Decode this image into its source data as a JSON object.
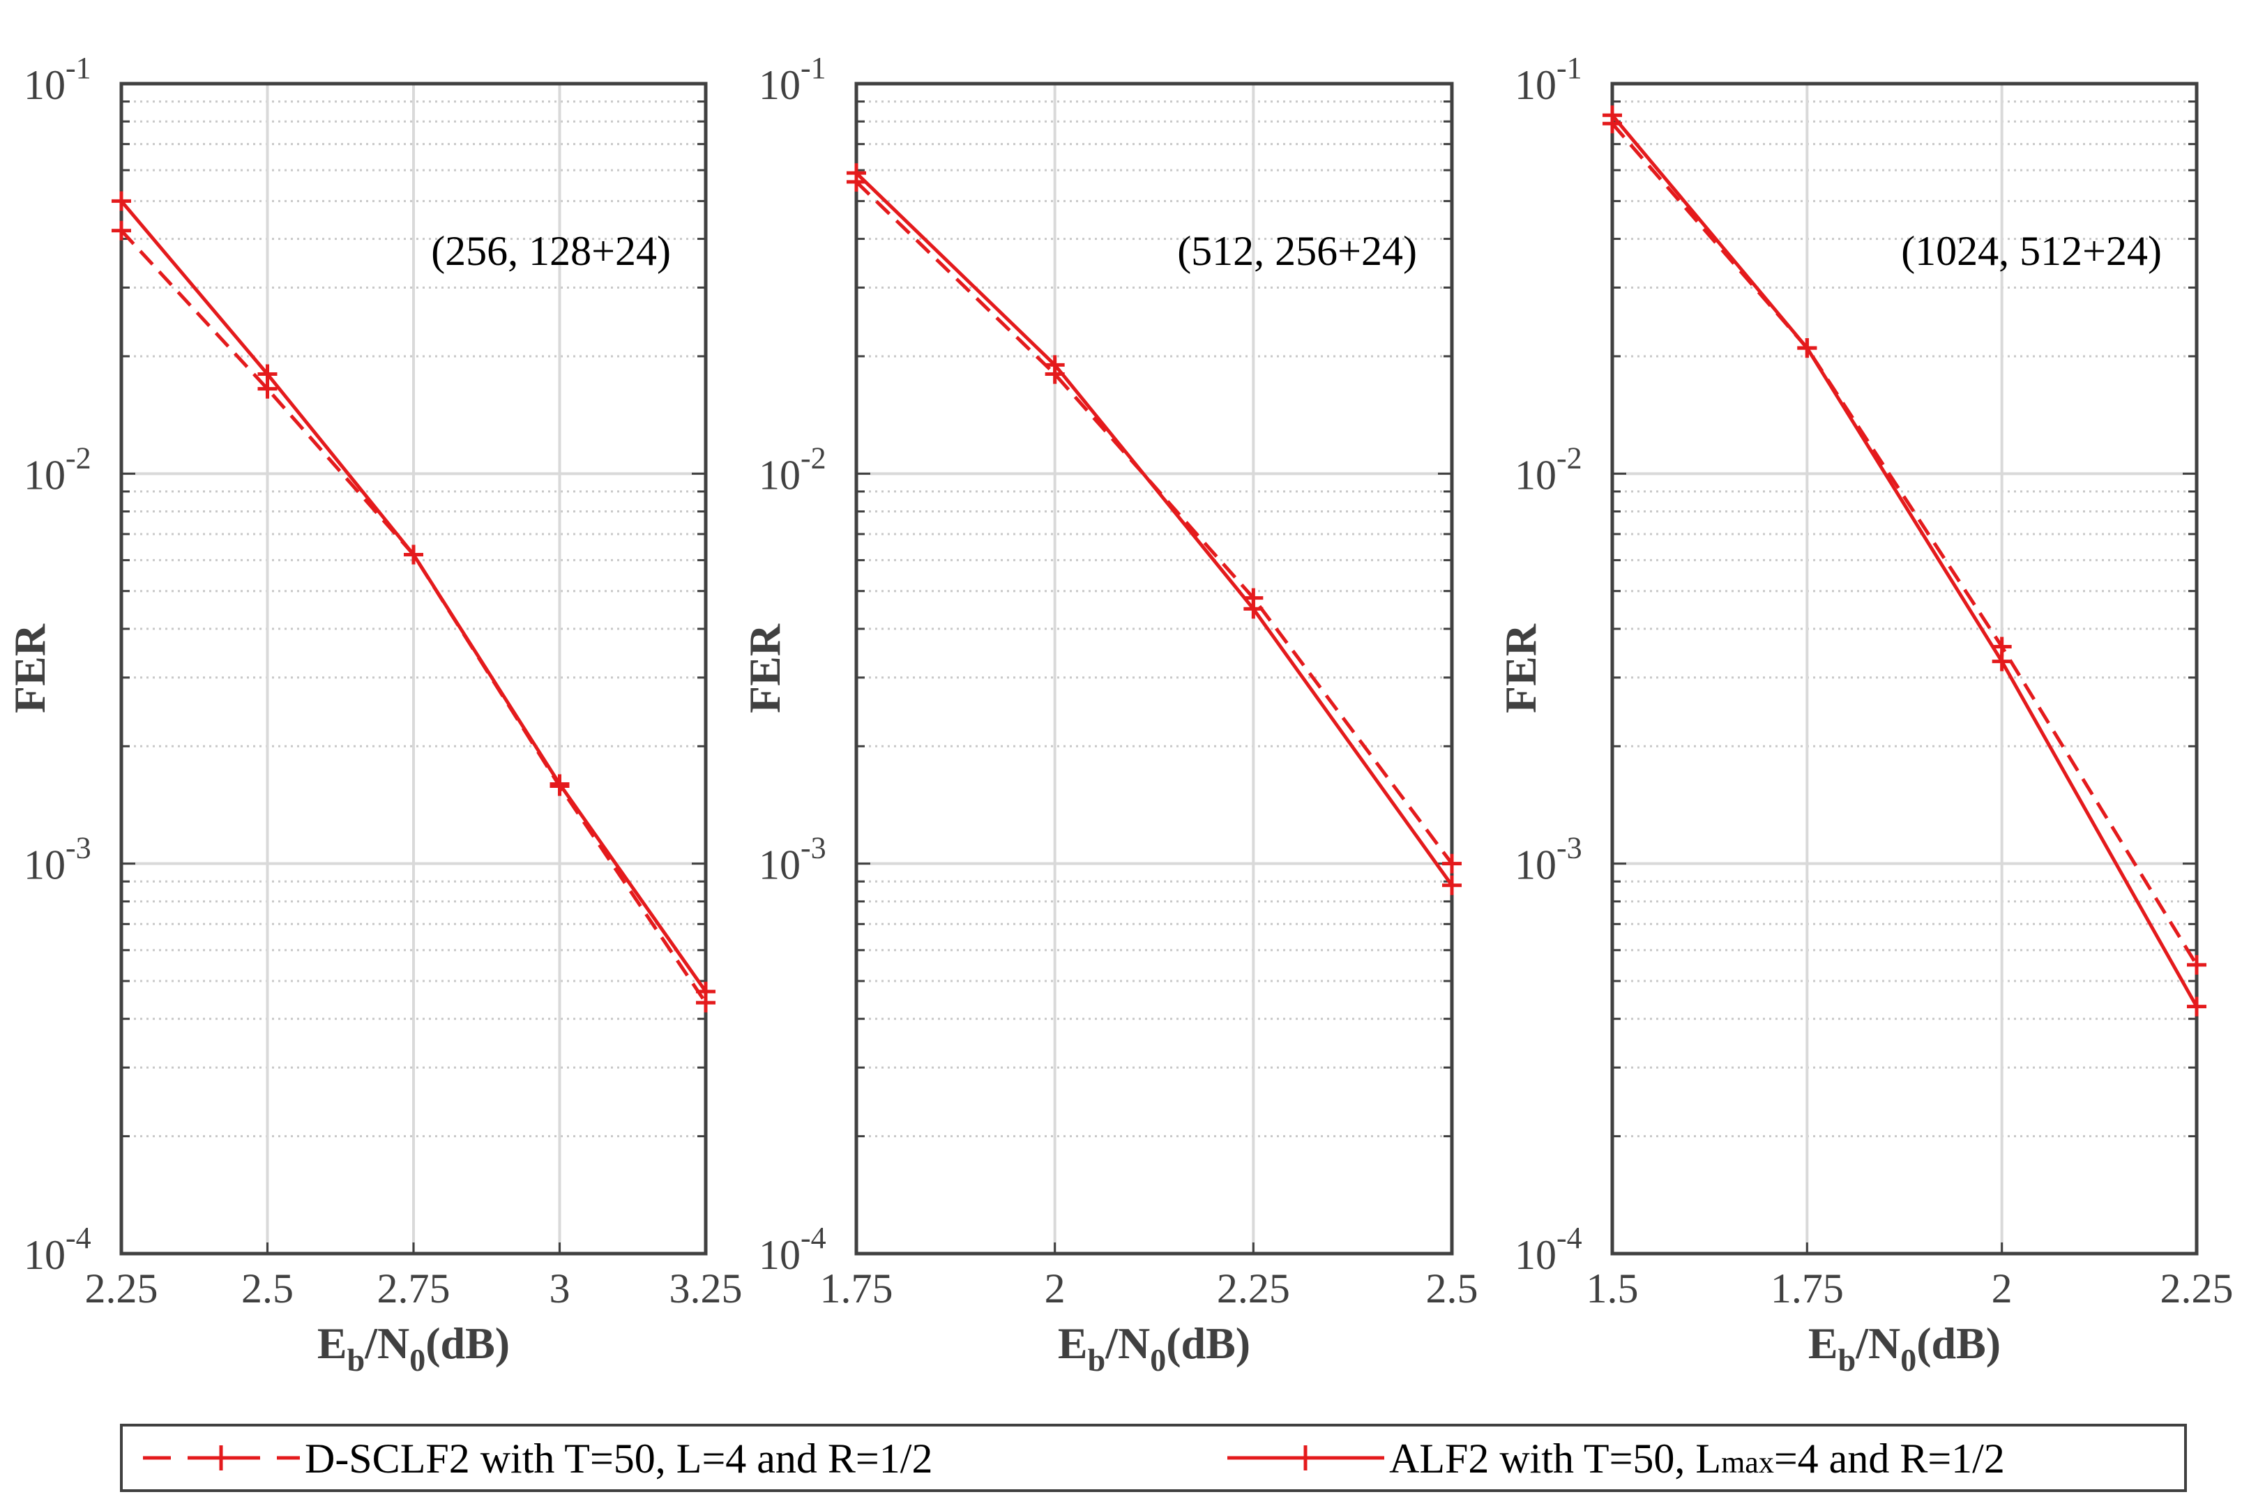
{
  "chart_data": [
    {
      "type": "line",
      "yscale": "log",
      "ylim": [
        0.0001,
        0.1
      ],
      "xlim": [
        2.25,
        3.25
      ],
      "xticks": [
        "2.25",
        "2.5",
        "2.75",
        "3",
        "3.25"
      ],
      "xlabel": "Eb/N0(dB)",
      "ylabel": "FER",
      "annotation": "(256, 128+24)",
      "series": [
        {
          "name": "D-SCLF2 with T=50, L=4 and R=1/2",
          "x": [
            2.25,
            2.5,
            2.75,
            3,
            3.25
          ],
          "y": [
            0.042,
            0.0165,
            0.0062,
            0.00158,
            0.00044
          ]
        },
        {
          "name": "ALF2 with T=50, Lmax=4 and R=1/2",
          "x": [
            2.25,
            2.5,
            2.75,
            3,
            3.25
          ],
          "y": [
            0.05,
            0.018,
            0.0062,
            0.0016,
            0.00047
          ]
        }
      ]
    },
    {
      "type": "line",
      "yscale": "log",
      "ylim": [
        0.0001,
        0.1
      ],
      "xlim": [
        1.75,
        2.5
      ],
      "xticks": [
        "1.75",
        "2",
        "2.25",
        "2.5"
      ],
      "xlabel": "Eb/N0(dB)",
      "ylabel": "FER",
      "annotation": "(512, 256+24)",
      "series": [
        {
          "name": "D-SCLF2 with T=50, L=4 and R=1/2",
          "x": [
            1.75,
            2,
            2.25,
            2.5
          ],
          "y": [
            0.056,
            0.018,
            0.0048,
            0.001
          ]
        },
        {
          "name": "ALF2 with T=50, Lmax=4 and R=1/2",
          "x": [
            1.75,
            2,
            2.25,
            2.5
          ],
          "y": [
            0.059,
            0.019,
            0.0045,
            0.00088
          ]
        }
      ]
    },
    {
      "type": "line",
      "yscale": "log",
      "ylim": [
        0.0001,
        0.1
      ],
      "xlim": [
        1.5,
        2.25
      ],
      "xticks": [
        "1.5",
        "1.75",
        "2",
        "2.25"
      ],
      "xlabel": "Eb/N0(dB)",
      "ylabel": "FER",
      "annotation": "(1024, 512+24)",
      "series": [
        {
          "name": "D-SCLF2 with T=50, L=4 and R=1/2",
          "x": [
            1.5,
            1.75,
            2,
            2.25
          ],
          "y": [
            0.079,
            0.021,
            0.0036,
            0.00055
          ]
        },
        {
          "name": "ALF2 with T=50, Lmax=4 and R=1/2",
          "x": [
            1.5,
            1.75,
            2,
            2.25
          ],
          "y": [
            0.083,
            0.021,
            0.0033,
            0.00043
          ]
        }
      ]
    }
  ],
  "yticks": [
    {
      "base": "10",
      "exp": "-1"
    },
    {
      "base": "10",
      "exp": "-2"
    },
    {
      "base": "10",
      "exp": "-3"
    },
    {
      "base": "10",
      "exp": "-4"
    }
  ],
  "axis_text": {
    "ylabel": "FER",
    "xlabel_main": "E",
    "xlabel_sub1": "b",
    "xlabel_mid": "/N",
    "xlabel_sub2": "0",
    "xlabel_tail": "(dB)"
  },
  "legend": {
    "item1": "D-SCLF2 with T=50, L=4 and R=1/2",
    "item2_pre": "ALF2 with T=50, L",
    "item2_sub": "max",
    "item2_post": "=4 and R=1/2"
  },
  "colors": {
    "series": "#e41a1c",
    "axis": "#404040",
    "grid_major": "#d9d9d9",
    "grid_minor": "#c8c8c8"
  }
}
